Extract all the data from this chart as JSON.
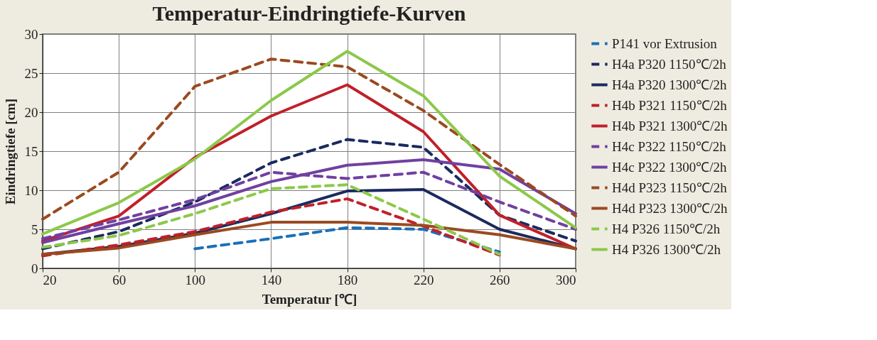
{
  "chart_data": {
    "type": "line",
    "title": "Temperatur-Eindringtiefe-Kurven",
    "xlabel": "Temperatur [℃]",
    "ylabel": "Eindringtiefe [cm]",
    "x": [
      20,
      60,
      100,
      140,
      180,
      220,
      260,
      300
    ],
    "xlim": [
      20,
      300
    ],
    "xticks": [
      20,
      60,
      100,
      140,
      180,
      220,
      260,
      300
    ],
    "ylim": [
      0,
      30
    ],
    "yticks": [
      0,
      5,
      10,
      15,
      20,
      25,
      30
    ],
    "grid": true,
    "legend": "right",
    "marker": "none",
    "series": [
      {
        "name": "P141 vor Extrusion",
        "color": "#1a70b8",
        "line_style": "dashed",
        "values": [
          null,
          null,
          2.5,
          3.8,
          5.2,
          5.0,
          2.1,
          null
        ]
      },
      {
        "name": "H4a P320 1150℃/2h",
        "color": "#1b2a5e",
        "line_style": "dashed",
        "values": [
          2.5,
          4.7,
          8.5,
          13.5,
          16.5,
          15.5,
          6.8,
          3.5
        ]
      },
      {
        "name": "H4a P320 1300℃/2h",
        "color": "#1b2a5e",
        "line_style": "solid",
        "values": [
          1.8,
          2.8,
          4.5,
          7.0,
          9.9,
          10.1,
          5.0,
          2.5
        ]
      },
      {
        "name": "H4b P321 1150℃/2h",
        "color": "#c0202a",
        "line_style": "dashed",
        "values": [
          1.6,
          3.0,
          4.7,
          7.2,
          8.9,
          5.4,
          1.7,
          null
        ]
      },
      {
        "name": "H4b P321 1300℃/2h",
        "color": "#c0202a",
        "line_style": "solid",
        "values": [
          3.5,
          6.7,
          14.2,
          19.5,
          23.5,
          17.5,
          6.8,
          2.5
        ]
      },
      {
        "name": "H4c P322 1150℃/2h",
        "color": "#7040a0",
        "line_style": "dashed",
        "values": [
          3.8,
          6.2,
          8.8,
          12.3,
          11.5,
          12.3,
          8.5,
          5.0
        ]
      },
      {
        "name": "H4c P322 1300℃/2h",
        "color": "#7040a0",
        "line_style": "solid",
        "values": [
          3.3,
          5.7,
          8.0,
          11.1,
          13.2,
          13.9,
          12.7,
          7.0
        ]
      },
      {
        "name": "H4d P323 1150℃/2h",
        "color": "#9a4a20",
        "line_style": "dashed",
        "values": [
          6.3,
          12.3,
          23.3,
          26.8,
          25.8,
          20.2,
          13.3,
          6.7
        ]
      },
      {
        "name": "H4d P323 1300℃/2h",
        "color": "#9a4a20",
        "line_style": "solid",
        "values": [
          1.8,
          2.6,
          4.3,
          5.9,
          5.9,
          5.5,
          4.3,
          2.5
        ]
      },
      {
        "name": "H4 P326 1150℃/2h",
        "color": "#8cc84a",
        "line_style": "dashed",
        "values": [
          2.7,
          4.2,
          7.0,
          10.2,
          10.7,
          6.3,
          1.8,
          null
        ]
      },
      {
        "name": "H4 P326 1300℃/2h",
        "color": "#8cc84a",
        "line_style": "solid",
        "values": [
          4.4,
          8.4,
          14.0,
          21.5,
          27.8,
          22.1,
          11.8,
          5.2
        ]
      }
    ]
  }
}
